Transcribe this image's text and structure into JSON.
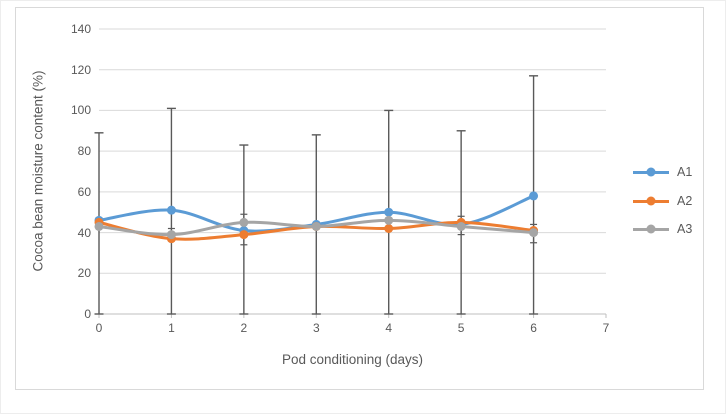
{
  "chart_data": {
    "type": "line",
    "title": "",
    "xlabel": "Pod conditioning (days)",
    "ylabel": "Cocoa bean moisture content (%)",
    "x": [
      0,
      1,
      2,
      3,
      4,
      5,
      6
    ],
    "xlim": [
      0,
      7
    ],
    "ylim": [
      0,
      140
    ],
    "xticks": [
      0,
      1,
      2,
      3,
      4,
      5,
      6,
      7
    ],
    "yticks": [
      0,
      20,
      40,
      60,
      80,
      100,
      120,
      140
    ],
    "grid": true,
    "line_style": "smooth",
    "markers": "circle",
    "legend_position": "right",
    "series": [
      {
        "name": "A1",
        "color": "#5B9BD5",
        "values": [
          46,
          51,
          41,
          44,
          50,
          44,
          58
        ]
      },
      {
        "name": "A2",
        "color": "#ED7D31",
        "values": [
          45,
          37,
          39,
          43,
          42,
          45,
          41
        ]
      },
      {
        "name": "A3",
        "color": "#A5A5A5",
        "values": [
          43,
          39,
          45,
          43,
          46,
          43,
          40
        ]
      }
    ],
    "error_bars": {
      "color": "#595959",
      "full_range": [
        {
          "x": 0,
          "low": 0,
          "high": 89
        },
        {
          "x": 1,
          "low": 0,
          "high": 101
        },
        {
          "x": 2,
          "low": 0,
          "high": 83
        },
        {
          "x": 3,
          "low": 0,
          "high": 88
        },
        {
          "x": 4,
          "low": 0,
          "high": 100
        },
        {
          "x": 5,
          "low": 0,
          "high": 90
        },
        {
          "x": 6,
          "low": 0,
          "high": 117
        }
      ],
      "small": [
        {
          "x": 1,
          "low": 36,
          "high": 42
        },
        {
          "x": 2,
          "low": 34,
          "high": 49
        },
        {
          "x": 5,
          "low": 39,
          "high": 48
        },
        {
          "x": 6,
          "low": 35,
          "high": 44
        }
      ]
    },
    "colors": {
      "gridline": "#D9D9D9",
      "axis_line": "#BFBFBF",
      "text": "#595959",
      "error_bar": "#595959",
      "frame_border": "#D9D9D9"
    }
  }
}
